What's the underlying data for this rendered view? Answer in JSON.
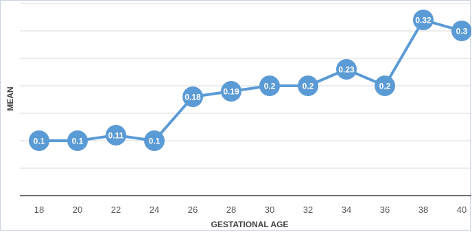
{
  "chart_data": {
    "type": "line",
    "title": "",
    "xlabel": "GESTATIONAL AGE",
    "ylabel": "MEAN",
    "categories": [
      "18",
      "20",
      "22",
      "24",
      "26",
      "28",
      "30",
      "32",
      "34",
      "36",
      "38",
      "40"
    ],
    "series": [
      {
        "values": [
          0.1,
          0.1,
          0.11,
          0.1,
          0.18,
          0.19,
          0.2,
          0.2,
          0.23,
          0.2,
          0.32,
          0.3
        ],
        "labels": [
          "0.1",
          "0.1",
          "0.11",
          "0.1",
          "0.18",
          "0.19",
          "0.2",
          "0.2",
          "0.23",
          "0.2",
          "0.32",
          "0.3"
        ]
      }
    ],
    "ylim": [
      0,
      0.35
    ],
    "grid": true,
    "legend": "none",
    "colors": {
      "line": "#5b9bd5",
      "marker": "#5b9bd5",
      "grid": "#d9d9d9",
      "axis": "#404040"
    }
  }
}
